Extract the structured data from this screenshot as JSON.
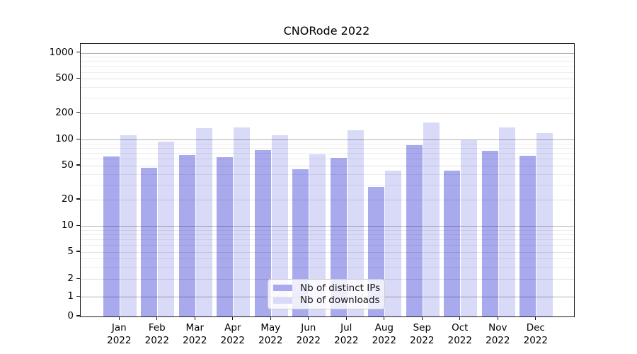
{
  "title": "CNORode 2022",
  "legend": {
    "items": [
      {
        "label": "Nb of distinct IPs",
        "color": "#a9aaee"
      },
      {
        "label": "Nb of downloads",
        "color": "#d9daf7"
      }
    ]
  },
  "y_axis": {
    "ticks": [
      {
        "label": "1000",
        "value": 1000
      },
      {
        "label": "500",
        "value": 500
      },
      {
        "label": "200",
        "value": 200
      },
      {
        "label": "100",
        "value": 100
      },
      {
        "label": "50",
        "value": 50
      },
      {
        "label": "20",
        "value": 20
      },
      {
        "label": "10",
        "value": 10
      },
      {
        "label": "5",
        "value": 5
      },
      {
        "label": "2",
        "value": 2
      },
      {
        "label": "1",
        "value": 1
      },
      {
        "label": "0",
        "value": 0
      }
    ]
  },
  "x_axis": {
    "ticks": [
      {
        "line1": "Jan",
        "line2": "2022"
      },
      {
        "line1": "Feb",
        "line2": "2022"
      },
      {
        "line1": "Mar",
        "line2": "2022"
      },
      {
        "line1": "Apr",
        "line2": "2022"
      },
      {
        "line1": "May",
        "line2": "2022"
      },
      {
        "line1": "Jun",
        "line2": "2022"
      },
      {
        "line1": "Jul",
        "line2": "2022"
      },
      {
        "line1": "Aug",
        "line2": "2022"
      },
      {
        "line1": "Sep",
        "line2": "2022"
      },
      {
        "line1": "Oct",
        "line2": "2022"
      },
      {
        "line1": "Nov",
        "line2": "2022"
      },
      {
        "line1": "Dec",
        "line2": "2022"
      }
    ]
  },
  "chart_data": {
    "type": "bar",
    "title": "CNORode 2022",
    "categories": [
      "Jan 2022",
      "Feb 2022",
      "Mar 2022",
      "Apr 2022",
      "May 2022",
      "Jun 2022",
      "Jul 2022",
      "Aug 2022",
      "Sep 2022",
      "Oct 2022",
      "Nov 2022",
      "Dec 2022"
    ],
    "series": [
      {
        "name": "Nb of distinct IPs",
        "color": "#a9aaee",
        "values": [
          64,
          47,
          66,
          63,
          76,
          45,
          62,
          28,
          87,
          44,
          74,
          65
        ]
      },
      {
        "name": "Nb of downloads",
        "color": "#d9daf7",
        "values": [
          113,
          94,
          136,
          138,
          112,
          67,
          127,
          44,
          155,
          98,
          137,
          119
        ]
      }
    ],
    "yscale": "symlog",
    "y_ticks": [
      0,
      1,
      2,
      5,
      10,
      20,
      50,
      100,
      200,
      500,
      1000
    ],
    "ylim": [
      0,
      1070
    ],
    "grid": true,
    "legend_position": "lower center"
  }
}
